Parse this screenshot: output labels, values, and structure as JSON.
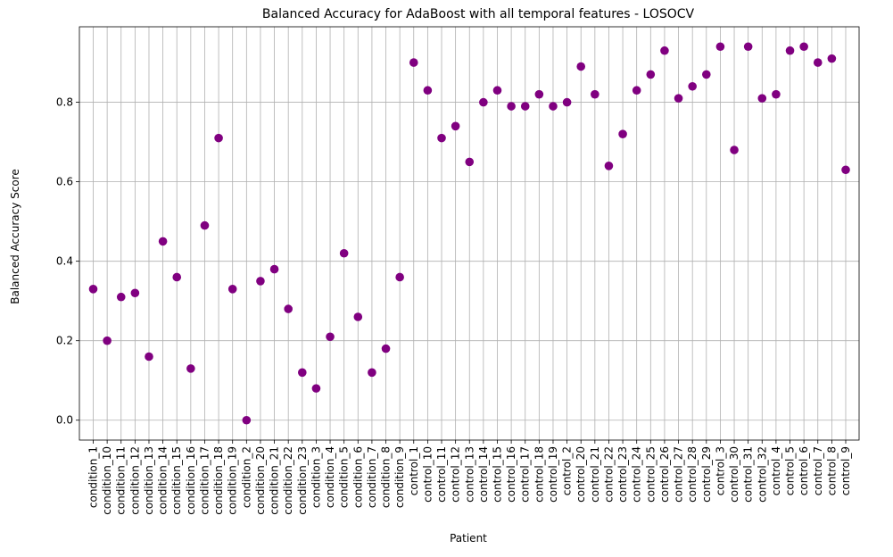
{
  "chart_data": {
    "type": "scatter",
    "title": "Balanced Accuracy for AdaBoost with all temporal features - LOSOCV",
    "xlabel": "Patient",
    "ylabel": "Balanced Accuracy Score",
    "ylim": [
      -0.05,
      0.99
    ],
    "yticks": [
      "0.0",
      "0.2",
      "0.4",
      "0.6",
      "0.8"
    ],
    "grid": true,
    "marker_color": "#800080",
    "categories": [
      "condition_1",
      "condition_10",
      "condition_11",
      "condition_12",
      "condition_13",
      "condition_14",
      "condition_15",
      "condition_16",
      "condition_17",
      "condition_18",
      "condition_19",
      "condition_2",
      "condition_20",
      "condition_21",
      "condition_22",
      "condition_23",
      "condition_3",
      "condition_4",
      "condition_5",
      "condition_6",
      "condition_7",
      "condition_8",
      "condition_9",
      "control_1",
      "control_10",
      "control_11",
      "control_12",
      "control_13",
      "control_14",
      "control_15",
      "control_16",
      "control_17",
      "control_18",
      "control_19",
      "control_2",
      "control_20",
      "control_21",
      "control_22",
      "control_23",
      "control_24",
      "control_25",
      "control_26",
      "control_27",
      "control_28",
      "control_29",
      "control_3",
      "control_30",
      "control_31",
      "control_32",
      "control_4",
      "control_5",
      "control_6",
      "control_7",
      "control_8",
      "control_9"
    ],
    "values": [
      0.33,
      0.2,
      0.31,
      0.32,
      0.16,
      0.45,
      0.36,
      0.13,
      0.49,
      0.71,
      0.33,
      0.0,
      0.35,
      0.38,
      0.28,
      0.12,
      0.08,
      0.21,
      0.42,
      0.26,
      0.12,
      0.18,
      0.36,
      0.9,
      0.83,
      0.71,
      0.74,
      0.65,
      0.8,
      0.83,
      0.79,
      0.79,
      0.82,
      0.79,
      0.8,
      0.89,
      0.82,
      0.64,
      0.72,
      0.83,
      0.87,
      0.93,
      0.81,
      0.84,
      0.87,
      0.94,
      0.68,
      0.94,
      0.81,
      0.82,
      0.93,
      0.94,
      0.9,
      0.91,
      0.63
    ]
  }
}
